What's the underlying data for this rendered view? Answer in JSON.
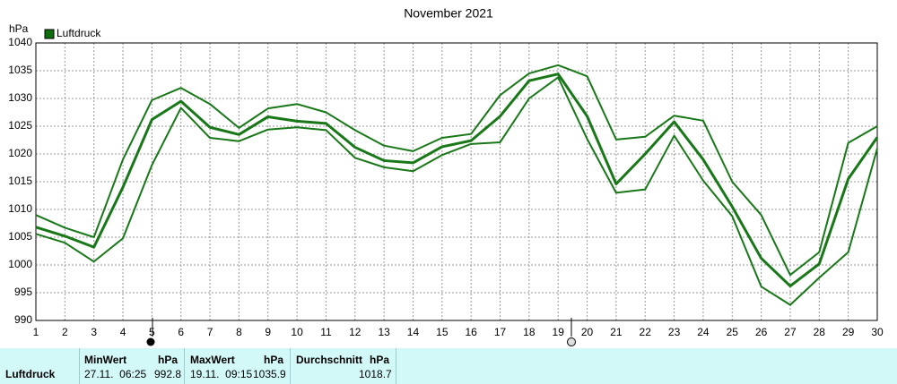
{
  "chart_data": {
    "type": "line",
    "title": "November 2021",
    "y_unit": "hPa",
    "legend": "Luftdruck",
    "legend_color": "#0b6e0b",
    "grid": true,
    "x": [
      1,
      2,
      3,
      4,
      5,
      6,
      7,
      8,
      9,
      10,
      11,
      12,
      13,
      14,
      15,
      16,
      17,
      18,
      19,
      20,
      21,
      22,
      23,
      24,
      25,
      26,
      27,
      28,
      29,
      30
    ],
    "xlim": [
      1,
      30
    ],
    "xticks": [
      1,
      2,
      3,
      4,
      5,
      6,
      7,
      8,
      9,
      10,
      11,
      12,
      13,
      14,
      15,
      16,
      17,
      18,
      19,
      20,
      21,
      22,
      23,
      24,
      25,
      26,
      27,
      28,
      29,
      30
    ],
    "ylim": [
      990,
      1040
    ],
    "yticks": [
      990,
      995,
      1000,
      1005,
      1010,
      1015,
      1020,
      1025,
      1030,
      1035,
      1040
    ],
    "series": [
      {
        "color": "#187818",
        "width": 2,
        "values": [
          1009,
          1006.7,
          1005,
          1019,
          1029.7,
          1031.9,
          1029,
          1024.7,
          1028.2,
          1029,
          1027.5,
          1024.3,
          1021.5,
          1020.5,
          1022.9,
          1023.6,
          1030.6,
          1034.5,
          1036,
          1034,
          1022.6,
          1023.1,
          1026.9,
          1026,
          1015,
          1009,
          998.2,
          1002.3,
          1022,
          1025
        ]
      },
      {
        "color": "#187818",
        "width": 3,
        "values": [
          1006.8,
          1005.2,
          1003.2,
          1014,
          1026.2,
          1029.5,
          1024.8,
          1023.5,
          1026.7,
          1025.9,
          1025.5,
          1021.2,
          1018.8,
          1018.4,
          1021.3,
          1022.4,
          1026.8,
          1033.2,
          1034.4,
          1026.8,
          1014.6,
          1020,
          1025.8,
          1019,
          1010.5,
          1001.2,
          996.2,
          1000.2,
          1015.5,
          1023
        ]
      },
      {
        "color": "#187818",
        "width": 2,
        "values": [
          1005.6,
          1004,
          1000.6,
          1004.8,
          1018,
          1028.3,
          1022.9,
          1022.3,
          1024.4,
          1024.8,
          1024.3,
          1019.3,
          1017.6,
          1016.9,
          1019.8,
          1021.8,
          1022.1,
          1030,
          1033.8,
          1022.7,
          1013,
          1013.6,
          1023.3,
          1015.2,
          1008.8,
          996.1,
          992.8,
          997.7,
          1002.3,
          1021
        ]
      }
    ]
  },
  "table": {
    "row_label": "Luftdruck",
    "columns": [
      {
        "title": "MinWert",
        "unit": "hPa",
        "time": "27.11.  06:25",
        "value": 992.8
      },
      {
        "title": "MaxWert",
        "unit": "hPa",
        "time": "19.11.  09:15",
        "value": 1035.9
      },
      {
        "title": "Durchschnitt",
        "unit": "hPa",
        "value": 1018.7
      }
    ]
  }
}
